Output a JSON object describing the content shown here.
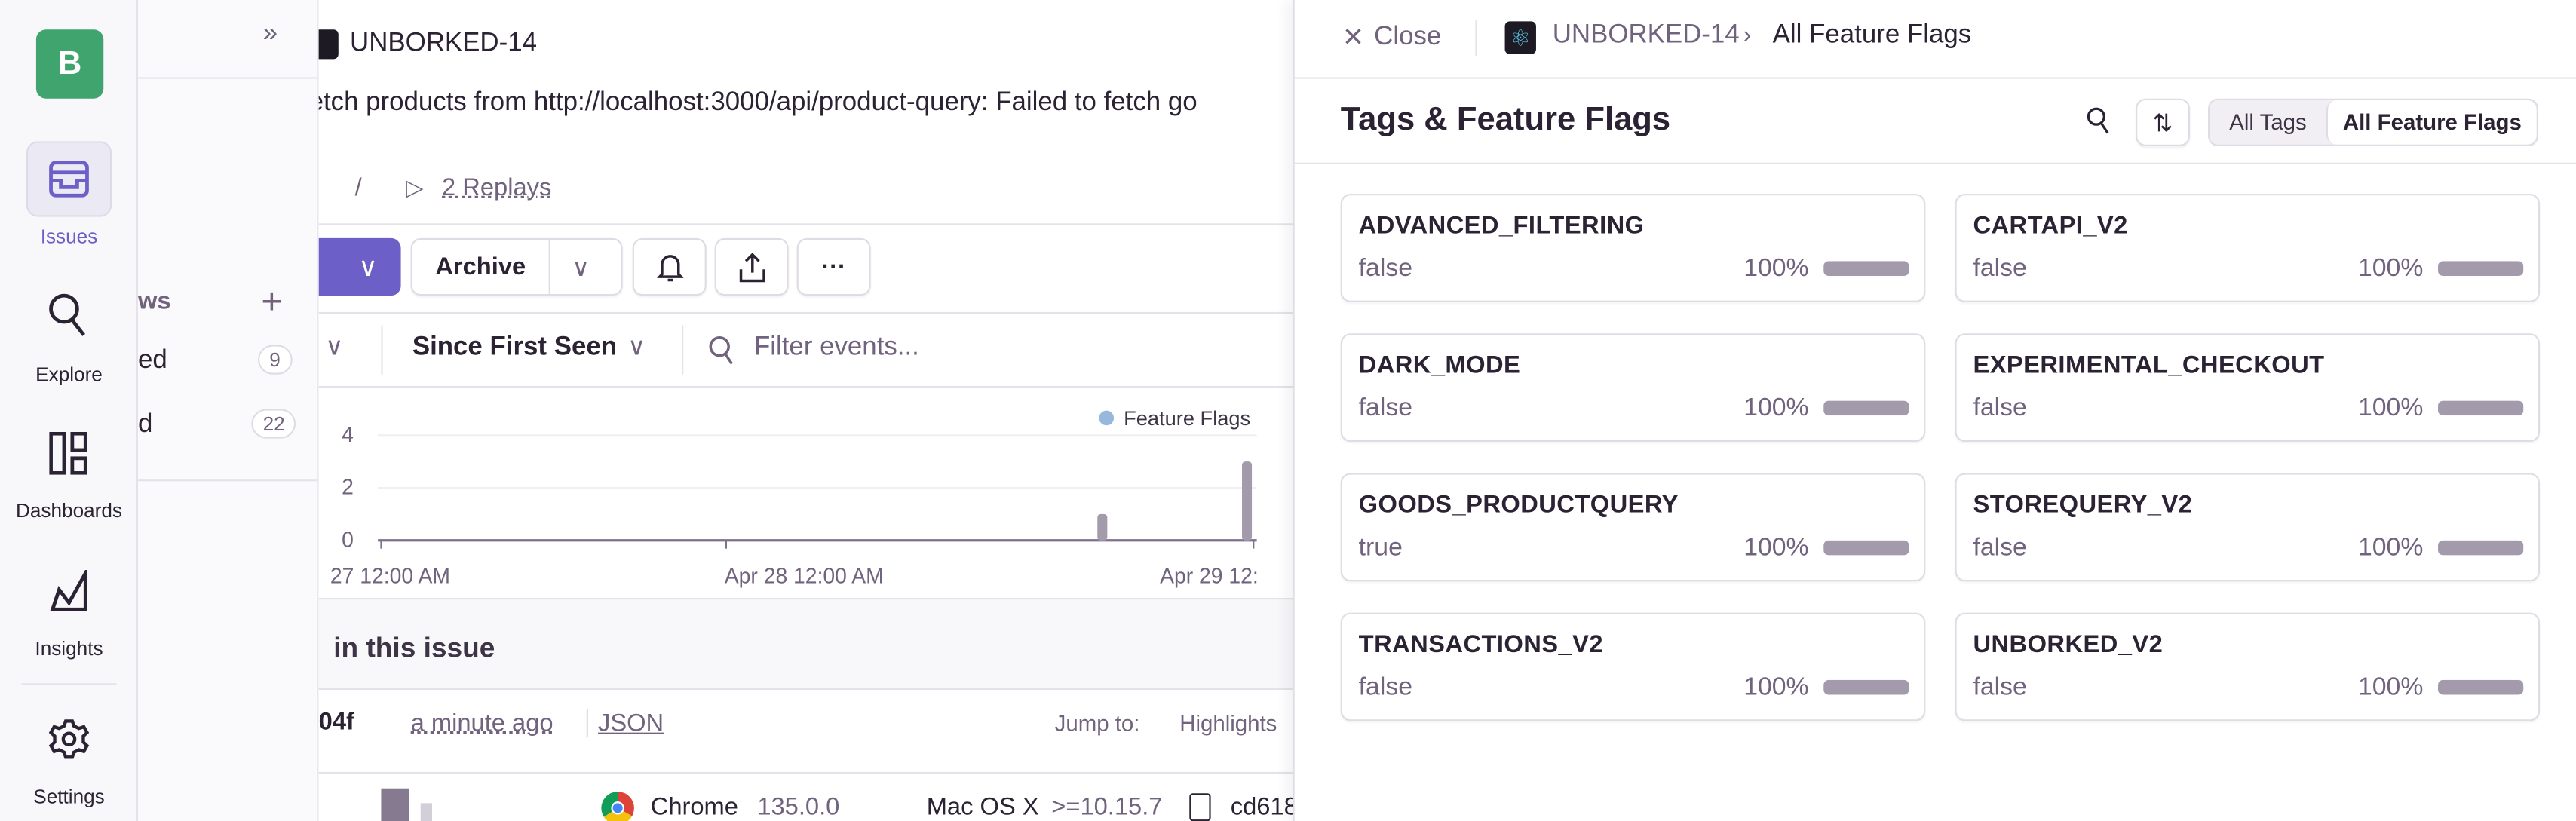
{
  "rail": {
    "org_initial": "B",
    "items": [
      {
        "label": "Issues",
        "icon": "inbox-icon",
        "active": true
      },
      {
        "label": "Explore",
        "icon": "search-icon"
      },
      {
        "label": "Dashboards",
        "icon": "dashboard-icon"
      },
      {
        "label": "Insights",
        "icon": "insights-icon"
      },
      {
        "label": "Settings",
        "icon": "gear-icon"
      }
    ]
  },
  "sidebar": {
    "section_label": "ws",
    "items": [
      {
        "label": "ed",
        "count": "9"
      },
      {
        "label": "d",
        "count": "22"
      }
    ]
  },
  "main": {
    "project": "UNBORKED-14",
    "error_message": "etch products from http://localhost:3000/api/product-query: Failed to fetch go",
    "slash": "/",
    "replays": "2 Replays",
    "archive_label": "Archive",
    "since_label": "Since First Seen",
    "filter_placeholder": "Filter events...",
    "section_title": "in this issue",
    "event_id": "04f",
    "event_time": "a minute ago",
    "json_link": "JSON",
    "jump_to": "Jump to:",
    "highlights": "Highlights",
    "browser": "Chrome",
    "browser_version": "135.0.0",
    "os": "Mac OS X",
    "os_version": ">=10.15.7",
    "device": "cd618"
  },
  "chart_data": {
    "type": "bar",
    "legend": [
      "Feature Flags"
    ],
    "legend_placement": "top-right",
    "y_ticks": [
      "4",
      "2",
      "0"
    ],
    "ylim": [
      0,
      4
    ],
    "x_tick_labels": [
      "27 12:00 AM",
      "Apr 28 12:00 AM",
      "Apr 29 12:"
    ],
    "series": [
      {
        "name": "Feature Flags",
        "points": [
          {
            "x": "Apr 29 (early)",
            "y": 1
          },
          {
            "x": "Apr 29 (latest)",
            "y": 3
          }
        ]
      }
    ],
    "color": "#a39aac"
  },
  "drawer": {
    "close_label": "Close",
    "breadcrumb_project": "UNBORKED-14",
    "breadcrumb_current": "All Feature Flags",
    "title": "Tags & Feature Flags",
    "segments": [
      "All Tags",
      "All Feature Flags"
    ],
    "selected_segment": "All Feature Flags",
    "flags": [
      {
        "name": "ADVANCED_FILTERING",
        "value": "false",
        "percent": "100%",
        "fraction": 1.0
      },
      {
        "name": "CARTAPI_V2",
        "value": "false",
        "percent": "100%",
        "fraction": 1.0
      },
      {
        "name": "DARK_MODE",
        "value": "false",
        "percent": "100%",
        "fraction": 1.0
      },
      {
        "name": "EXPERIMENTAL_CHECKOUT",
        "value": "false",
        "percent": "100%",
        "fraction": 1.0
      },
      {
        "name": "GOODS_PRODUCTQUERY",
        "value": "true",
        "percent": "100%",
        "fraction": 1.0
      },
      {
        "name": "STOREQUERY_V2",
        "value": "false",
        "percent": "100%",
        "fraction": 1.0
      },
      {
        "name": "TRANSACTIONS_V2",
        "value": "false",
        "percent": "100%",
        "fraction": 1.0
      },
      {
        "name": "UNBORKED_V2",
        "value": "false",
        "percent": "100%",
        "fraction": 1.0
      }
    ]
  },
  "colors": {
    "accent": "#6c5fc7",
    "org": "#3fa46e",
    "text": "#2b2233",
    "muted": "#71637e"
  }
}
